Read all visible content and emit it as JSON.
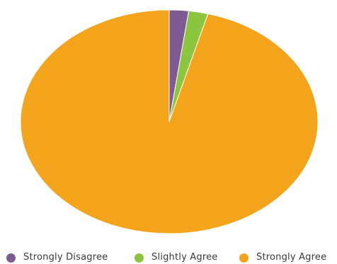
{
  "chart_data": {
    "type": "pie",
    "title": "",
    "series": [
      {
        "name": "Strongly Disagree",
        "value": 2.1,
        "color": "#7e5a93"
      },
      {
        "name": "Slightly Agree",
        "value": 2.1,
        "color": "#8cc63f"
      },
      {
        "name": "Strongly Agree",
        "value": 95.8,
        "color": "#f4a41b"
      }
    ],
    "legend": {
      "position": "bottom"
    }
  }
}
